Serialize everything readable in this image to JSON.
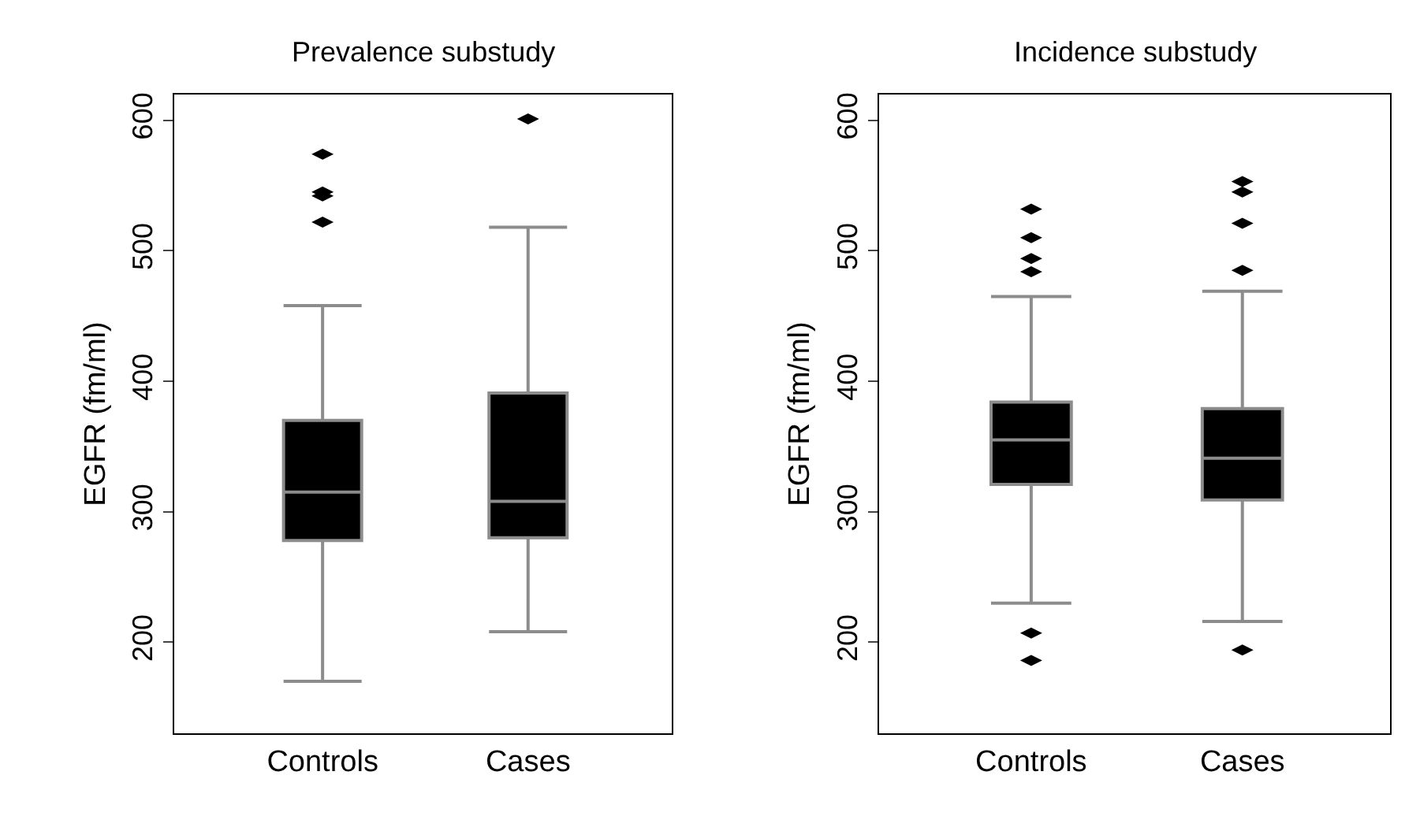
{
  "chart_data": [
    {
      "type": "box",
      "title": "Prevalence substudy",
      "ylabel": "EGFR (fm/ml)",
      "categories": [
        "Controls",
        "Cases"
      ],
      "color": "#000000",
      "boxes": [
        {
          "low": 170,
          "q1": 278,
          "median": 315,
          "q3": 370,
          "high": 458,
          "outliers": [
            522,
            542,
            545,
            574
          ]
        },
        {
          "low": 208,
          "q1": 280,
          "median": 308,
          "q3": 391,
          "high": 518,
          "outliers": [
            601
          ]
        }
      ],
      "ylim": [
        130,
        620
      ],
      "yticks": [
        200,
        300,
        400,
        500,
        600
      ]
    },
    {
      "type": "box",
      "title": "Incidence substudy",
      "ylabel": "EGFR (fm/ml)",
      "categories": [
        "Controls",
        "Cases"
      ],
      "color": "#000000",
      "boxes": [
        {
          "low": 230,
          "q1": 321,
          "median": 355,
          "q3": 384,
          "high": 465,
          "outliers": [
            186,
            207,
            484,
            494,
            510,
            532
          ]
        },
        {
          "low": 216,
          "q1": 309,
          "median": 341,
          "q3": 379,
          "high": 469,
          "outliers": [
            194,
            485,
            521,
            545,
            553
          ]
        }
      ],
      "ylim": [
        130,
        620
      ],
      "yticks": [
        200,
        300,
        400,
        500,
        600
      ]
    }
  ]
}
